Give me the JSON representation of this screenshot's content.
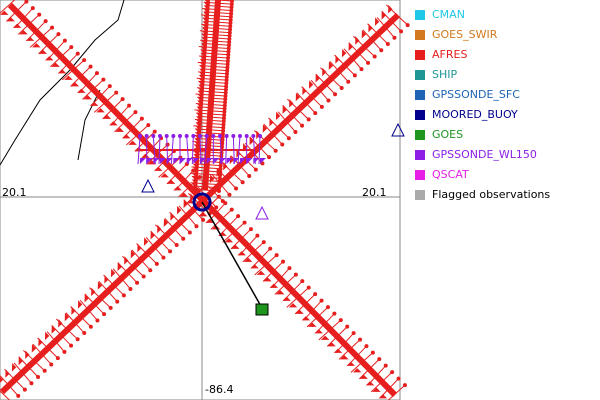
{
  "plot": {
    "labels": {
      "left": "20.1",
      "right": "20.1",
      "bottom": "-86.4"
    }
  },
  "legend": {
    "items": [
      {
        "label": "CMAN",
        "color": "#1ec8e6"
      },
      {
        "label": "GOES_SWIR",
        "color": "#d2781e"
      },
      {
        "label": "AFRES",
        "color": "#e61e1e"
      },
      {
        "label": "SHIP",
        "color": "#1e9696"
      },
      {
        "label": "GPSSONDE_SFC",
        "color": "#1e64b4"
      },
      {
        "label": "MOORED_BUOY",
        "color": "#00008c"
      },
      {
        "label": "GOES",
        "color": "#1e961e"
      },
      {
        "label": "GPSSONDE_WL150",
        "color": "#8c1ee6"
      },
      {
        "label": "QSCAT",
        "color": "#e61ee6"
      },
      {
        "label": "Flagged observations",
        "color": "#aaaaaa",
        "text_color": "#000000"
      }
    ]
  }
}
